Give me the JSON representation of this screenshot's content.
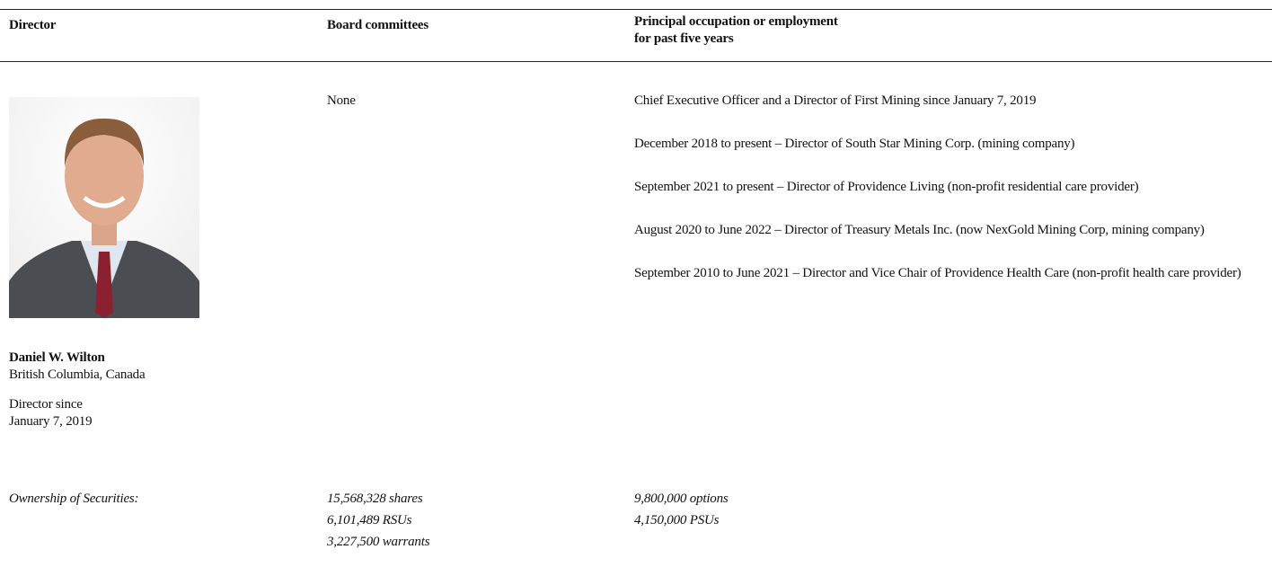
{
  "table": {
    "headers": [
      [
        "Director"
      ],
      [
        "Board committees"
      ],
      [
        "Principal occupation or employment",
        "for past five years"
      ]
    ],
    "director": {
      "name": "Daniel W. Wilton",
      "location": "British Columbia, Canada",
      "since_label": "Director since",
      "since_date": "January 7, 2019"
    },
    "committees": "None",
    "occupations": [
      "Chief Executive Officer and a Director of First Mining since January 7, 2019",
      "December 2018 to present – Director of South Star Mining Corp. (mining company)",
      "September 2021 to present – Director of Providence Living (non-profit residential care provider)",
      "August 2020 to June 2022 – Director of Treasury Metals Inc. (now NexGold Mining Corp, mining company)",
      "September 2010 to June 2021 – Director and Vice Chair of Providence Health Care (non-profit health care provider)"
    ],
    "ownership": {
      "label": "Ownership of Securities:",
      "left": [
        "15,568,328 shares",
        "6,101,489 RSUs",
        "3,227,500 warrants"
      ],
      "right": [
        "9,800,000 options",
        "4,150,000 PSUs"
      ]
    }
  }
}
